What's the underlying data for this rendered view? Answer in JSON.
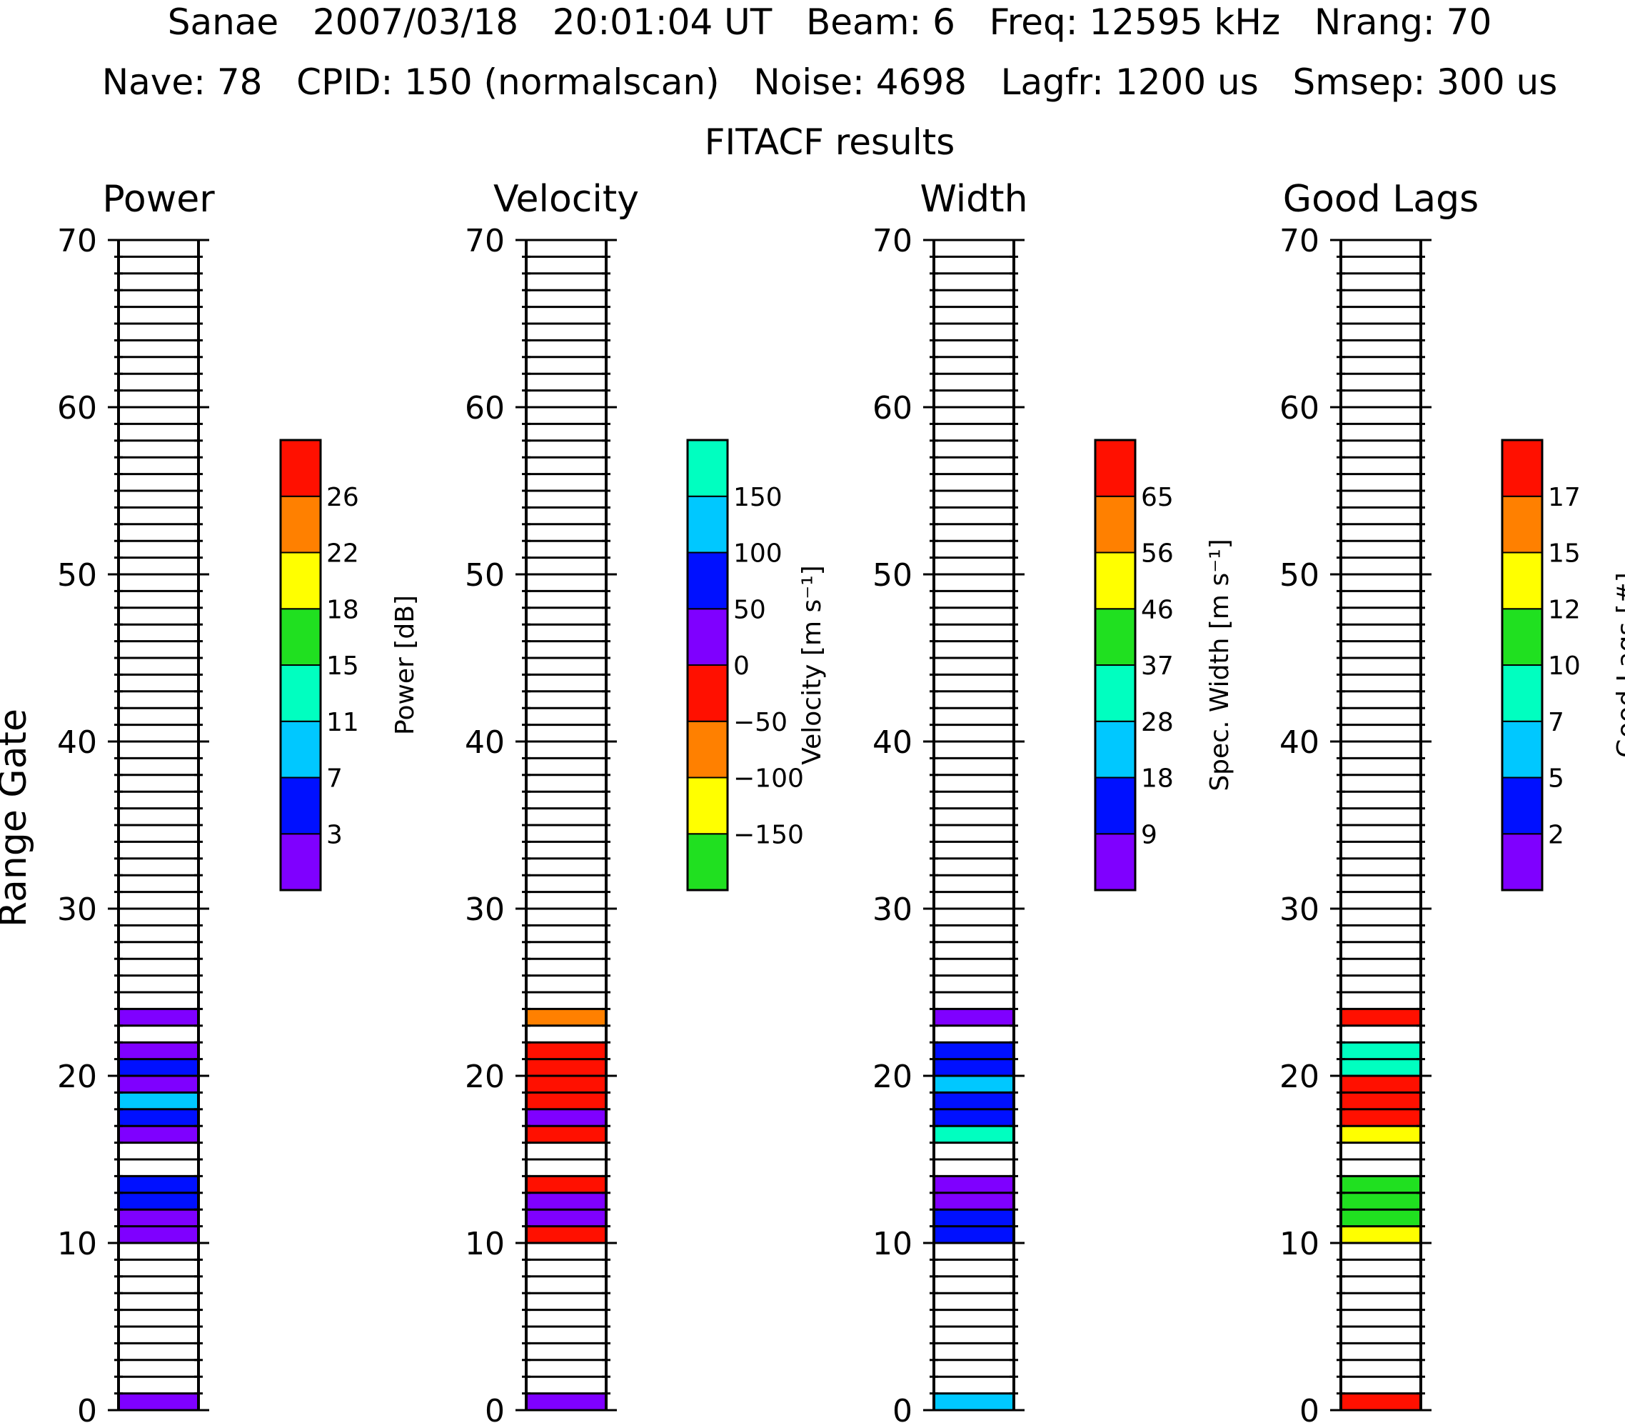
{
  "header": {
    "line1": "Sanae   2007/03/18   20:01:04 UT   Beam: 6   Freq: 12595 kHz   Nrang: 70",
    "line2": "Nave: 78   CPID: 150 (normalscan)   Noise: 4698   Lagfr: 1200 us   Smsep: 300 us",
    "line3": "FITACF results"
  },
  "y_axis_label": "Range Gate",
  "chart_data": [
    {
      "type": "heatmap",
      "title": "Power",
      "colorbar_title": "Power [dB]",
      "ylim": [
        0,
        70
      ],
      "yticks": [
        "0",
        "10",
        "20",
        "30",
        "40",
        "50",
        "60",
        "70"
      ],
      "colorbar_labels": [
        "3",
        "7",
        "11",
        "15",
        "18",
        "22",
        "26"
      ],
      "cells": [
        {
          "gate": 0,
          "bin": 0
        },
        {
          "gate": 10,
          "bin": 0
        },
        {
          "gate": 11,
          "bin": 0
        },
        {
          "gate": 12,
          "bin": 1
        },
        {
          "gate": 13,
          "bin": 1
        },
        {
          "gate": 16,
          "bin": 0
        },
        {
          "gate": 17,
          "bin": 1
        },
        {
          "gate": 18,
          "bin": 2
        },
        {
          "gate": 19,
          "bin": 0
        },
        {
          "gate": 20,
          "bin": 1
        },
        {
          "gate": 21,
          "bin": 0
        },
        {
          "gate": 23,
          "bin": 0
        }
      ]
    },
    {
      "type": "heatmap",
      "title": "Velocity",
      "colorbar_title": "Velocity [m s⁻¹]",
      "ylim": [
        0,
        70
      ],
      "yticks": [
        "0",
        "10",
        "20",
        "30",
        "40",
        "50",
        "60",
        "70"
      ],
      "colorbar_labels": [
        "−150",
        "−100",
        "−50",
        "0",
        "50",
        "100",
        "150"
      ],
      "cells": [
        {
          "gate": 0,
          "bin": 4
        },
        {
          "gate": 10,
          "bin": 3
        },
        {
          "gate": 11,
          "bin": 4
        },
        {
          "gate": 12,
          "bin": 4
        },
        {
          "gate": 13,
          "bin": 3
        },
        {
          "gate": 16,
          "bin": 3
        },
        {
          "gate": 17,
          "bin": 4
        },
        {
          "gate": 18,
          "bin": 3
        },
        {
          "gate": 19,
          "bin": 3
        },
        {
          "gate": 20,
          "bin": 3
        },
        {
          "gate": 21,
          "bin": 3
        },
        {
          "gate": 23,
          "bin": 2
        }
      ]
    },
    {
      "type": "heatmap",
      "title": "Width",
      "colorbar_title": "Spec. Width [m s⁻¹]",
      "ylim": [
        0,
        70
      ],
      "yticks": [
        "0",
        "10",
        "20",
        "30",
        "40",
        "50",
        "60",
        "70"
      ],
      "colorbar_labels": [
        "9",
        "18",
        "28",
        "37",
        "46",
        "56",
        "65"
      ],
      "cells": [
        {
          "gate": 0,
          "bin": 2
        },
        {
          "gate": 10,
          "bin": 1
        },
        {
          "gate": 11,
          "bin": 1
        },
        {
          "gate": 12,
          "bin": 0
        },
        {
          "gate": 13,
          "bin": 0
        },
        {
          "gate": 16,
          "bin": 3
        },
        {
          "gate": 17,
          "bin": 1
        },
        {
          "gate": 18,
          "bin": 1
        },
        {
          "gate": 19,
          "bin": 2
        },
        {
          "gate": 20,
          "bin": 1
        },
        {
          "gate": 21,
          "bin": 1
        },
        {
          "gate": 23,
          "bin": 0
        }
      ]
    },
    {
      "type": "heatmap",
      "title": "Good Lags",
      "colorbar_title": "Good Lags [#]",
      "ylim": [
        0,
        70
      ],
      "yticks": [
        "0",
        "10",
        "20",
        "30",
        "40",
        "50",
        "60",
        "70"
      ],
      "colorbar_labels": [
        "2",
        "5",
        "7",
        "10",
        "12",
        "15",
        "17"
      ],
      "cells": [
        {
          "gate": 0,
          "bin": 7
        },
        {
          "gate": 10,
          "bin": 5
        },
        {
          "gate": 11,
          "bin": 4
        },
        {
          "gate": 12,
          "bin": 4
        },
        {
          "gate": 13,
          "bin": 4
        },
        {
          "gate": 16,
          "bin": 5
        },
        {
          "gate": 17,
          "bin": 7
        },
        {
          "gate": 18,
          "bin": 7
        },
        {
          "gate": 19,
          "bin": 7
        },
        {
          "gate": 20,
          "bin": 3
        },
        {
          "gate": 21,
          "bin": 3
        },
        {
          "gate": 23,
          "bin": 7
        }
      ]
    }
  ],
  "palettes": {
    "power": [
      "#7f00ff",
      "#0010ff",
      "#00c8ff",
      "#00ffc0",
      "#20e020",
      "#ffff00",
      "#ff8000",
      "#ff1000"
    ],
    "velocity": [
      "#20e020",
      "#ffff00",
      "#ff8000",
      "#ff1000",
      "#7f00ff",
      "#0010ff",
      "#00c8ff",
      "#00ffc0"
    ]
  }
}
